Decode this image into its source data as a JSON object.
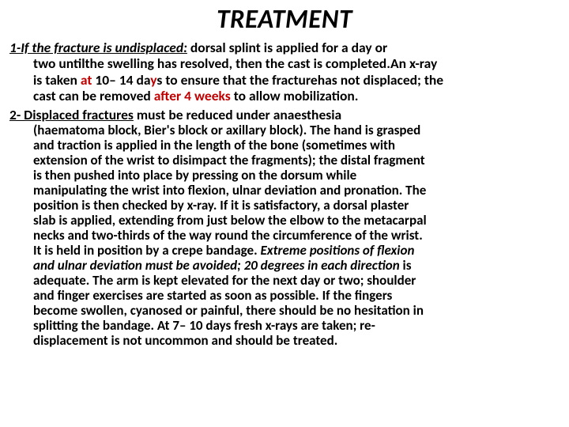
{
  "title": "TREATMENT",
  "section1": {
    "lead": "1-If the fracture is undisplaced:",
    "tail": " dorsal splint is applied for a day or",
    "line2a": "two untilthe swelling has resolved, then the cast is completed.An x-ray",
    "line3a": "is taken ",
    "line3_red1": "at",
    "line3b": "  10– 14 da",
    "line3_red2": "y",
    "line3c": "s to ensure that the fracturehas not displaced; the",
    "line4a": "cast can be removed ",
    "line4_red": "after 4 weeks",
    "line4b": " to allow mobilization."
  },
  "section2": {
    "lead": "2- Displaced fractures",
    "tail": " must be reduced under anaesthesia",
    "p1": "(haematoma block, Bier's block or axillary block). The hand is grasped",
    "p2": "and traction is applied in the  length of the bone (sometimes with",
    "p3": "extension of the wrist to disimpact the fragments); the distal fragment",
    "p4": "is then pushed into place by pressing on the dorsum while",
    "p5": "manipulating the wrist into flexion, ulnar deviation  and pronation. The",
    "p6": "position is then checked by x-ray. If it is satisfactory, a dorsal plaster",
    "p7": "slab is applied, extending from just below the elbow to the  metacarpal",
    "p8": "necks and two-thirds of the way round the circumference of the wrist.",
    "p9a": "It is held in position by a crepe bandage. ",
    "p9em": "Extreme positions of flexion",
    "p10em": "and ulnar deviation must be avoided; 20 degrees in each direction",
    "p10b": " is",
    "p11": "adequate. The arm is kept elevated for the next day or two; shoulder",
    "p12": "and finger exercises are started as soon as possible. If the fingers",
    "p13": "become swollen, cyanosed or painful, there should be no hesitation in",
    "p14": "splitting the   bandage. At 7– 10 days fresh x-rays are taken; re-",
    "p15": "displacement is not uncommon  and should be treated."
  },
  "colors": {
    "red": "#c00000",
    "text": "#000000",
    "bg": "#ffffff"
  }
}
